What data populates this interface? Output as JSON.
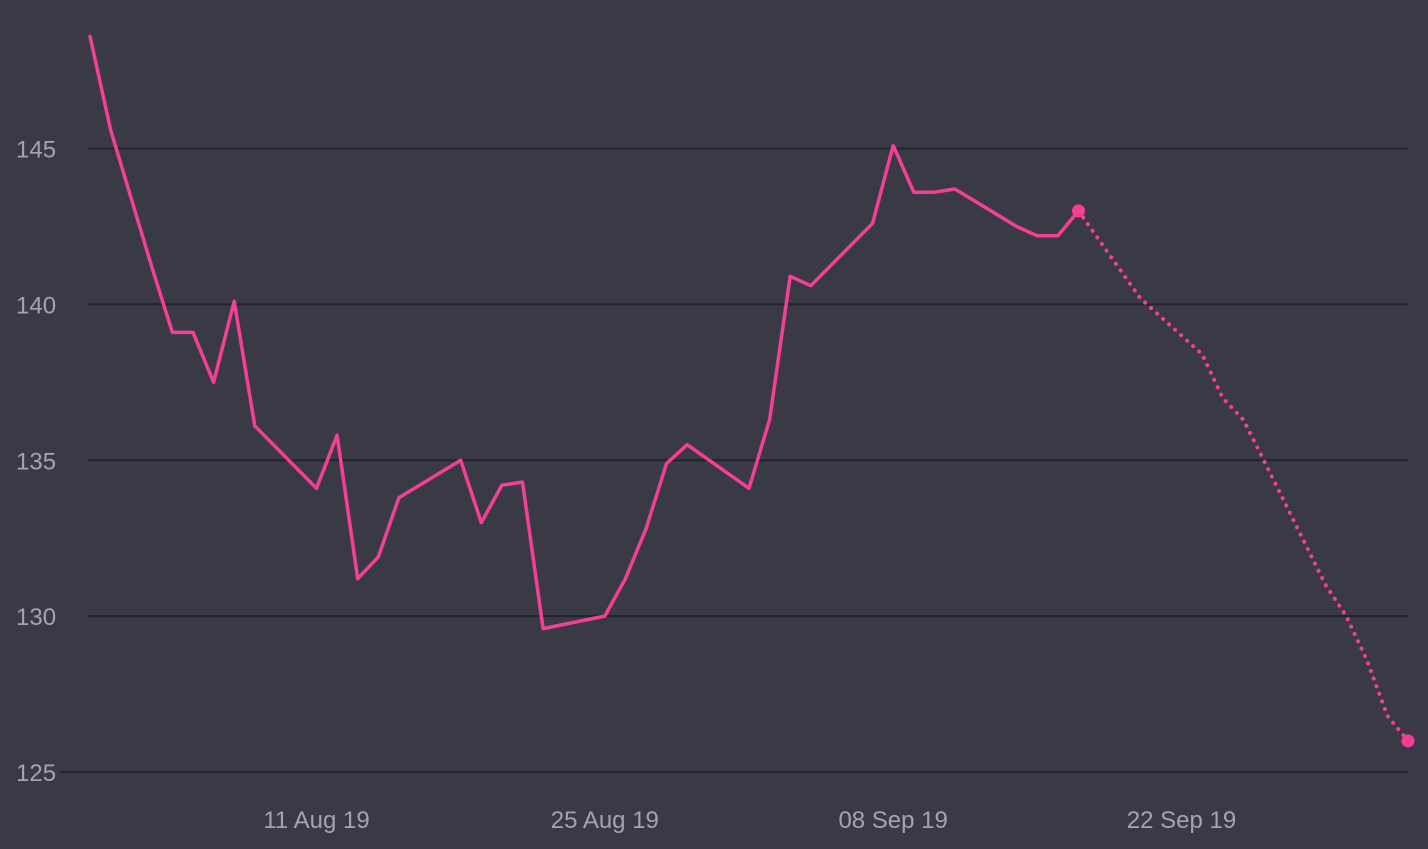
{
  "colors": {
    "background": "#3a3a46",
    "gridline": "#23232b",
    "series": "#f43f97",
    "tick_text": "#a4a4b0"
  },
  "chart_data": {
    "type": "line",
    "title": "",
    "xlabel": "",
    "ylabel": "",
    "grid": "horizontal",
    "legend": "none",
    "ylim": [
      125,
      148
    ],
    "xlim": [
      "2019-07-31",
      "2019-10-03"
    ],
    "y_ticks": [
      "125",
      "130",
      "135",
      "140",
      "145"
    ],
    "x_ticks": [
      {
        "date": "2019-08-11",
        "label": "11 Aug 19"
      },
      {
        "date": "2019-08-25",
        "label": "25 Aug 19"
      },
      {
        "date": "2019-09-08",
        "label": "08 Sep 19"
      },
      {
        "date": "2019-09-22",
        "label": "22 Sep 19"
      }
    ],
    "series": [
      {
        "style": "solid",
        "points": [
          {
            "x": "2019-07-31",
            "y": 148.6
          },
          {
            "x": "2019-08-01",
            "y": 145.6
          },
          {
            "x": "2019-08-02",
            "y": 143.4
          },
          {
            "x": "2019-08-03",
            "y": 141.2
          },
          {
            "x": "2019-08-04",
            "y": 139.1
          },
          {
            "x": "2019-08-05",
            "y": 139.1
          },
          {
            "x": "2019-08-06",
            "y": 137.5
          },
          {
            "x": "2019-08-07",
            "y": 140.1
          },
          {
            "x": "2019-08-08",
            "y": 136.1
          },
          {
            "x": "2019-08-11",
            "y": 134.1
          },
          {
            "x": "2019-08-12",
            "y": 135.8
          },
          {
            "x": "2019-08-13",
            "y": 131.2
          },
          {
            "x": "2019-08-14",
            "y": 131.9
          },
          {
            "x": "2019-08-15",
            "y": 133.8
          },
          {
            "x": "2019-08-18",
            "y": 135.0
          },
          {
            "x": "2019-08-19",
            "y": 133.0
          },
          {
            "x": "2019-08-20",
            "y": 134.2
          },
          {
            "x": "2019-08-21",
            "y": 134.3
          },
          {
            "x": "2019-08-22",
            "y": 129.6
          },
          {
            "x": "2019-08-25",
            "y": 130.0
          },
          {
            "x": "2019-08-26",
            "y": 131.2
          },
          {
            "x": "2019-08-27",
            "y": 132.8
          },
          {
            "x": "2019-08-28",
            "y": 134.9
          },
          {
            "x": "2019-08-29",
            "y": 135.5
          },
          {
            "x": "2019-09-01",
            "y": 134.1
          },
          {
            "x": "2019-09-02",
            "y": 136.3
          },
          {
            "x": "2019-09-03",
            "y": 140.9
          },
          {
            "x": "2019-09-04",
            "y": 140.6
          },
          {
            "x": "2019-09-07",
            "y": 142.6
          },
          {
            "x": "2019-09-08",
            "y": 145.1
          },
          {
            "x": "2019-09-09",
            "y": 143.6
          },
          {
            "x": "2019-09-10",
            "y": 143.6
          },
          {
            "x": "2019-09-11",
            "y": 143.7
          },
          {
            "x": "2019-09-14",
            "y": 142.5
          },
          {
            "x": "2019-09-15",
            "y": 142.2
          },
          {
            "x": "2019-09-16",
            "y": 142.2
          },
          {
            "x": "2019-09-17",
            "y": 143.0
          }
        ]
      },
      {
        "style": "dotted",
        "points": [
          {
            "x": "2019-09-17",
            "y": 143.0
          },
          {
            "x": "2019-09-20",
            "y": 140.2
          },
          {
            "x": "2019-09-22",
            "y": 139.0
          },
          {
            "x": "2019-09-23",
            "y": 138.4
          },
          {
            "x": "2019-09-24",
            "y": 137.0
          },
          {
            "x": "2019-09-25",
            "y": 136.3
          },
          {
            "x": "2019-09-26",
            "y": 135.0
          },
          {
            "x": "2019-09-29",
            "y": 131.0
          },
          {
            "x": "2019-09-30",
            "y": 130.0
          },
          {
            "x": "2019-10-01",
            "y": 128.6
          },
          {
            "x": "2019-10-02",
            "y": 126.8
          },
          {
            "x": "2019-10-03",
            "y": 126.0
          }
        ]
      }
    ],
    "markers": [
      {
        "x": "2019-09-17",
        "y": 143.0
      },
      {
        "x": "2019-10-03",
        "y": 126.0
      }
    ]
  }
}
